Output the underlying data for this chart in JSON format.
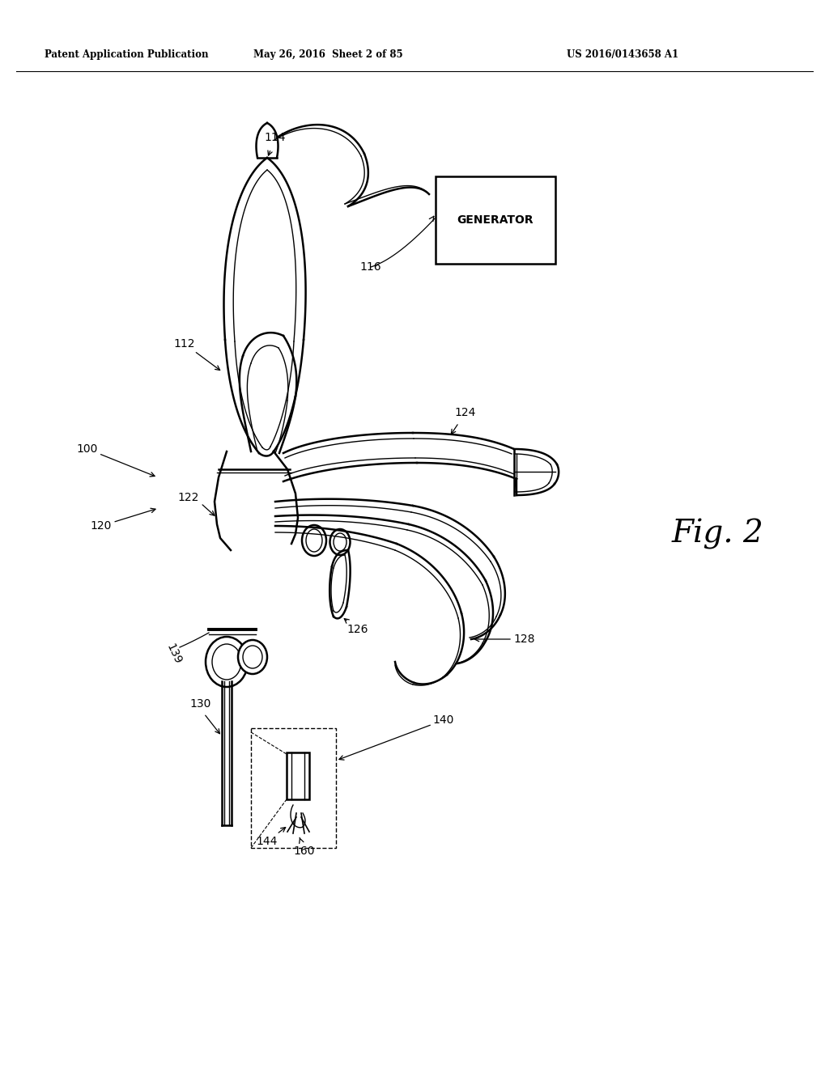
{
  "bg_color": "#ffffff",
  "lc": "#000000",
  "header_left": "Patent Application Publication",
  "header_mid": "May 26, 2016  Sheet 2 of 85",
  "header_right": "US 2016/0143658 A1"
}
